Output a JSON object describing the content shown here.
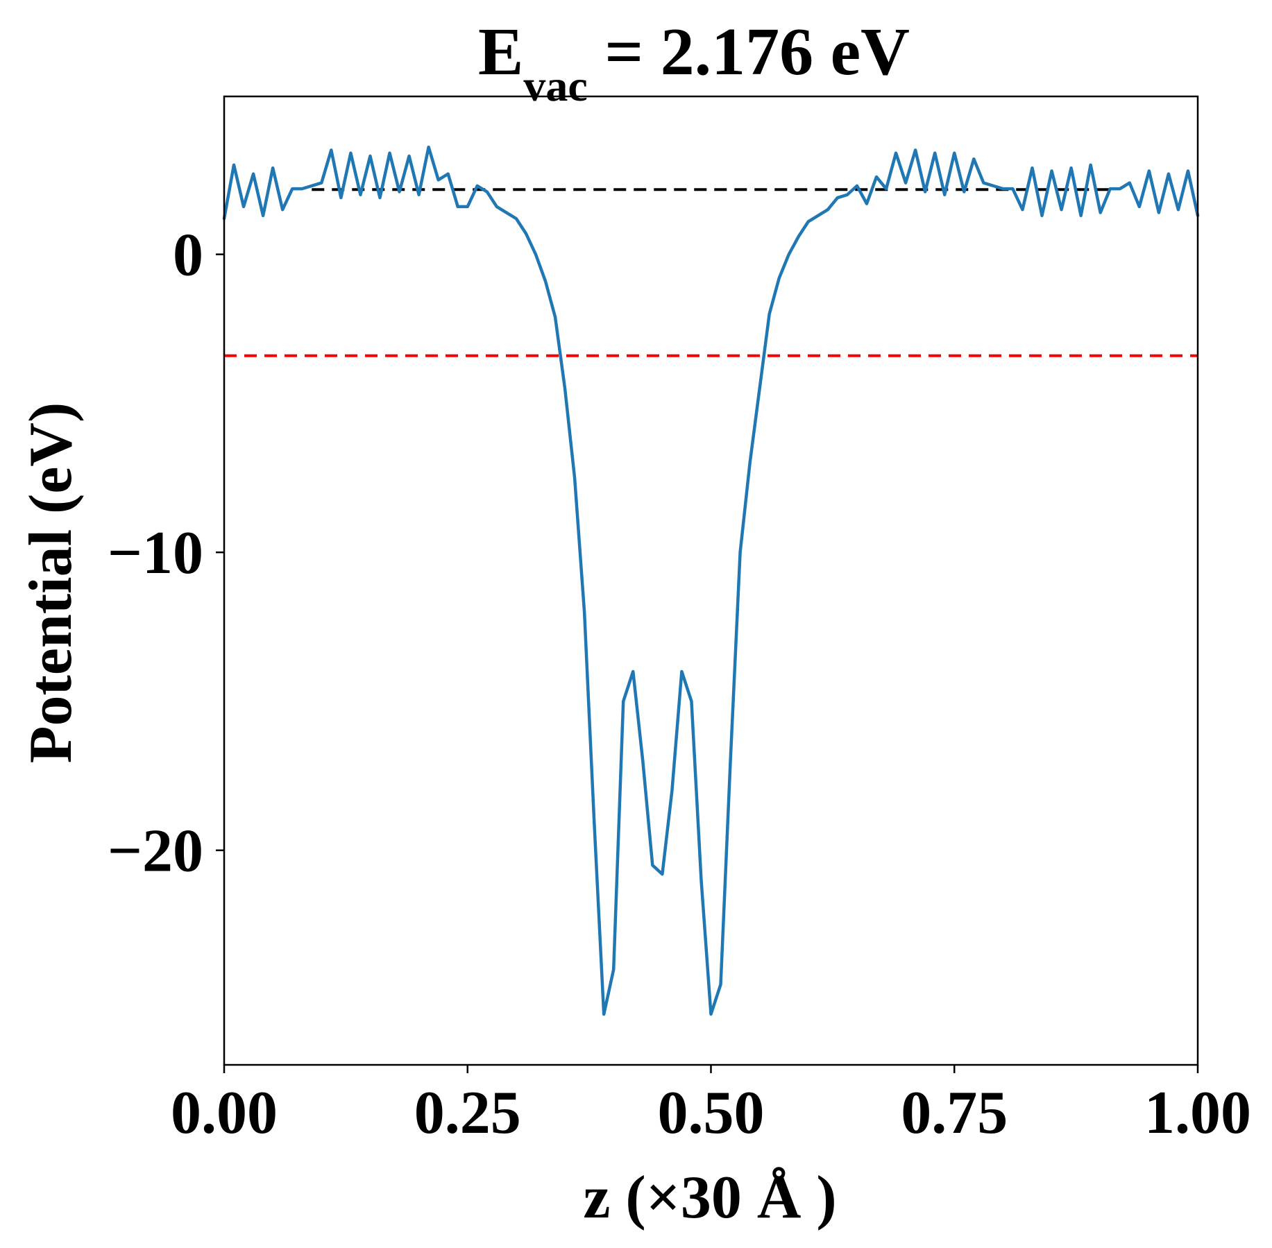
{
  "chart_data": {
    "type": "line",
    "title": {
      "main": "E",
      "subscript": "vac",
      "rest": " = 2.176 eV"
    },
    "xlabel": "z (×30 Å )",
    "ylabel": "Potential (eV)",
    "xlim": [
      0.0,
      1.0
    ],
    "ylim": [
      -27.2,
      5.3
    ],
    "xticks": [
      0.0,
      0.25,
      0.5,
      0.75,
      1.0
    ],
    "xtick_labels": [
      "0.00",
      "0.25",
      "0.50",
      "0.75",
      "1.00"
    ],
    "yticks": [
      0,
      -10,
      -20
    ],
    "ytick_labels": [
      "0",
      "−10",
      "−20"
    ],
    "grid": false,
    "legend": "none",
    "reference_lines": [
      {
        "name": "vacuum level",
        "y": 2.176,
        "x_range": [
          0.09,
          0.91
        ],
        "color": "#000000",
        "style": "dashed"
      },
      {
        "name": "fermi level",
        "y": -3.4,
        "x_range": [
          0.0,
          1.0
        ],
        "color": "#ff0000",
        "style": "dashed"
      }
    ],
    "series": [
      {
        "color": "#1f77b4",
        "x": [
          0.0,
          0.01,
          0.02,
          0.03,
          0.04,
          0.05,
          0.06,
          0.07,
          0.08,
          0.09,
          0.1,
          0.11,
          0.12,
          0.13,
          0.14,
          0.15,
          0.16,
          0.17,
          0.18,
          0.19,
          0.2,
          0.21,
          0.22,
          0.23,
          0.24,
          0.25,
          0.26,
          0.27,
          0.28,
          0.29,
          0.3,
          0.31,
          0.32,
          0.33,
          0.34,
          0.35,
          0.36,
          0.37,
          0.38,
          0.39,
          0.4,
          0.41,
          0.42,
          0.43,
          0.44,
          0.45,
          0.46,
          0.47,
          0.48,
          0.49,
          0.5,
          0.51,
          0.52,
          0.53,
          0.54,
          0.55,
          0.56,
          0.57,
          0.58,
          0.59,
          0.6,
          0.61,
          0.62,
          0.63,
          0.64,
          0.65,
          0.66,
          0.67,
          0.68,
          0.69,
          0.7,
          0.71,
          0.72,
          0.73,
          0.74,
          0.75,
          0.76,
          0.77,
          0.78,
          0.79,
          0.8,
          0.81,
          0.82,
          0.83,
          0.84,
          0.85,
          0.86,
          0.87,
          0.88,
          0.89,
          0.9,
          0.91,
          0.92,
          0.93,
          0.94,
          0.95,
          0.96,
          0.97,
          0.98,
          0.99,
          1.0
        ],
        "y": [
          1.2,
          3.0,
          1.6,
          2.7,
          1.3,
          2.9,
          1.5,
          2.2,
          2.2,
          2.3,
          2.4,
          3.5,
          1.9,
          3.4,
          2.0,
          3.3,
          1.9,
          3.4,
          2.1,
          3.3,
          2.0,
          3.6,
          2.5,
          2.7,
          1.6,
          1.6,
          2.3,
          2.1,
          1.6,
          1.4,
          1.2,
          0.7,
          0.0,
          -0.9,
          -2.1,
          -4.5,
          -7.5,
          -12.0,
          -19.0,
          -25.5,
          -24.0,
          -15.0,
          -14.0,
          -17.0,
          -20.5,
          -20.8,
          -18.0,
          -14.0,
          -15.0,
          -21.0,
          -25.5,
          -24.5,
          -17.0,
          -10.0,
          -7.0,
          -4.5,
          -2.0,
          -0.8,
          0.0,
          0.6,
          1.1,
          1.3,
          1.5,
          1.9,
          2.0,
          2.3,
          1.7,
          2.6,
          2.2,
          3.4,
          2.4,
          3.5,
          2.1,
          3.4,
          2.0,
          3.4,
          2.1,
          3.2,
          2.4,
          2.3,
          2.2,
          2.2,
          1.5,
          2.9,
          1.3,
          2.8,
          1.5,
          2.9,
          1.3,
          3.0,
          1.4,
          2.2,
          2.2,
          2.4,
          1.6,
          2.8,
          1.4,
          2.7,
          1.5,
          2.8,
          1.3
        ]
      }
    ]
  }
}
